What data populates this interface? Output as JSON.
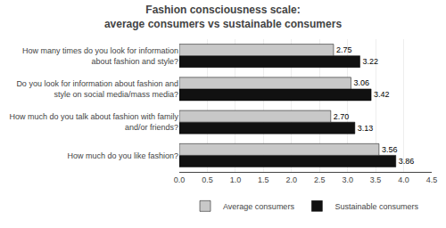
{
  "chart_data": {
    "type": "bar",
    "orientation": "horizontal",
    "title": "Fashion consciousness scale:\naverage consumers vs sustainable consumers",
    "categories": [
      "How much do you like fashion?",
      "How much do you talk about fashion with family\nand/or friends?",
      "Do you look for information about fashion and\nstyle on social media/mass media?",
      "How many times do you look for information\nabout fashion and style?"
    ],
    "series": [
      {
        "name": "Average consumers",
        "color": "#c8c8c8",
        "values": [
          3.56,
          2.7,
          3.06,
          2.75
        ],
        "value_labels": [
          "3.56",
          "2.70",
          "3.06",
          "2.75"
        ]
      },
      {
        "name": "Sustainable consumers",
        "color": "#111111",
        "values": [
          3.86,
          3.13,
          3.42,
          3.22
        ],
        "value_labels": [
          "3.86",
          "3.13",
          "3.42",
          "3.22"
        ]
      }
    ],
    "xlim": [
      0,
      4.5
    ],
    "xticks": [
      {
        "value": 0.0,
        "label": "0.0"
      },
      0.5,
      {
        "value": 1.0,
        "label": "1.0"
      },
      1.5,
      {
        "value": 2.0,
        "label": "2.0"
      },
      2.5,
      {
        "value": 3.0,
        "label": "3.0"
      },
      3.5,
      {
        "value": 4.0,
        "label": "4.0"
      },
      4.5
    ],
    "data_labels": true,
    "grid": true,
    "legend": "bottom"
  }
}
